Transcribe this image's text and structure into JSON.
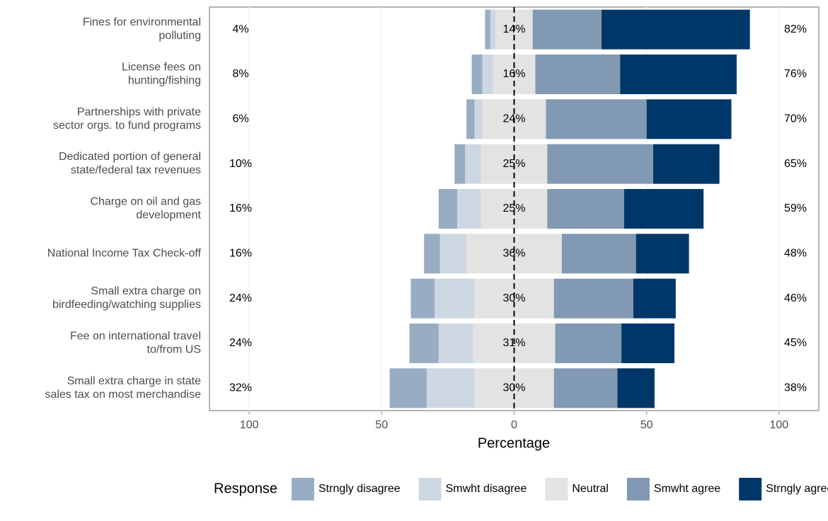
{
  "chart_data": {
    "type": "diverging-bar",
    "categories": [
      "Fines for environmental\npolluting",
      "License fees on\nhunting/fishing",
      "Partnerships with private\nsector orgs. to fund programs",
      "Dedicated portion of general\nstate/federal tax revenues",
      "Charge on oil and gas\ndevelopment",
      "National Income Tax Check-off",
      "Small extra charge on\nbirdfeeding/watching supplies",
      "Fee on international travel\nto/from US",
      "Small extra charge in state\nsales tax on most merchandise"
    ],
    "series": [
      {
        "name": "Strngly disagree",
        "color": "#98adc4",
        "values": [
          2,
          4,
          3,
          4,
          7,
          6,
          9,
          11,
          14
        ]
      },
      {
        "name": "Smwht disagree",
        "color": "#cdd7e1",
        "values": [
          2,
          4,
          3,
          6,
          9,
          10,
          15,
          13,
          18
        ]
      },
      {
        "name": "Neutral",
        "color": "#e3e3e3",
        "values": [
          14,
          16,
          24,
          25,
          25,
          36,
          30,
          31,
          30
        ],
        "value_labels": [
          "14%",
          "16%",
          "24%",
          "25%",
          "25%",
          "36%",
          "30%",
          "31%",
          "30%"
        ]
      },
      {
        "name": "Smwht agree",
        "color": "#8199b2",
        "values": [
          26,
          32,
          38,
          40,
          29,
          28,
          30,
          25,
          24
        ]
      },
      {
        "name": "Strngly agree",
        "color": "#003769",
        "values": [
          56,
          44,
          32,
          25,
          30,
          20,
          16,
          20,
          14
        ]
      }
    ],
    "left_labels": [
      "4%",
      "8%",
      "6%",
      "10%",
      "16%",
      "16%",
      "24%",
      "24%",
      "32%"
    ],
    "right_labels": [
      "82%",
      "76%",
      "70%",
      "65%",
      "59%",
      "48%",
      "46%",
      "45%",
      "38%"
    ],
    "x_label": "Percentage",
    "legend_title": "Response",
    "xlim": [
      -115,
      115
    ],
    "xticks": [
      {
        "value": -100,
        "label": "100"
      },
      {
        "value": -50,
        "label": "50"
      },
      0,
      50,
      100
    ],
    "grid": true
  }
}
